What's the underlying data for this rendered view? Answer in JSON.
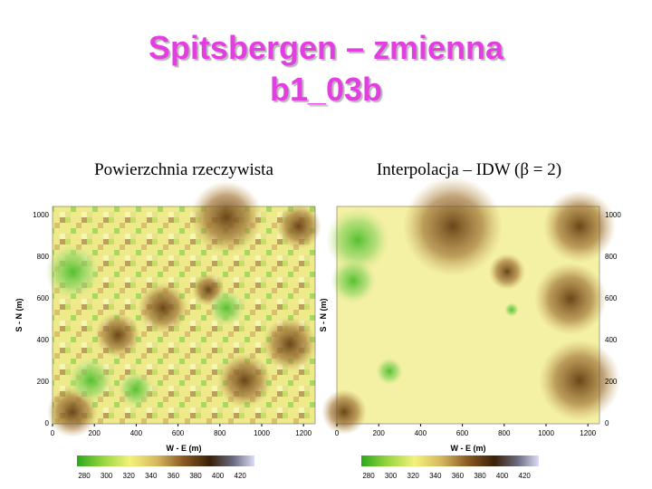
{
  "title": "Spitsbergen – zmienna b1_03b",
  "panels": [
    {
      "caption": "Powierzchnia rzeczywista"
    },
    {
      "caption": "Interpolacja – IDW (β = 2)"
    }
  ],
  "axes": {
    "x_label": "W - E (m)",
    "y_label": "S - N (m)",
    "xticks": [
      0,
      200,
      400,
      600,
      800,
      1000,
      1200
    ],
    "yticks": [
      0,
      200,
      400,
      600,
      800,
      1000
    ]
  },
  "colorbar_ticks": [
    280,
    300,
    320,
    340,
    360,
    380,
    400,
    420
  ]
}
